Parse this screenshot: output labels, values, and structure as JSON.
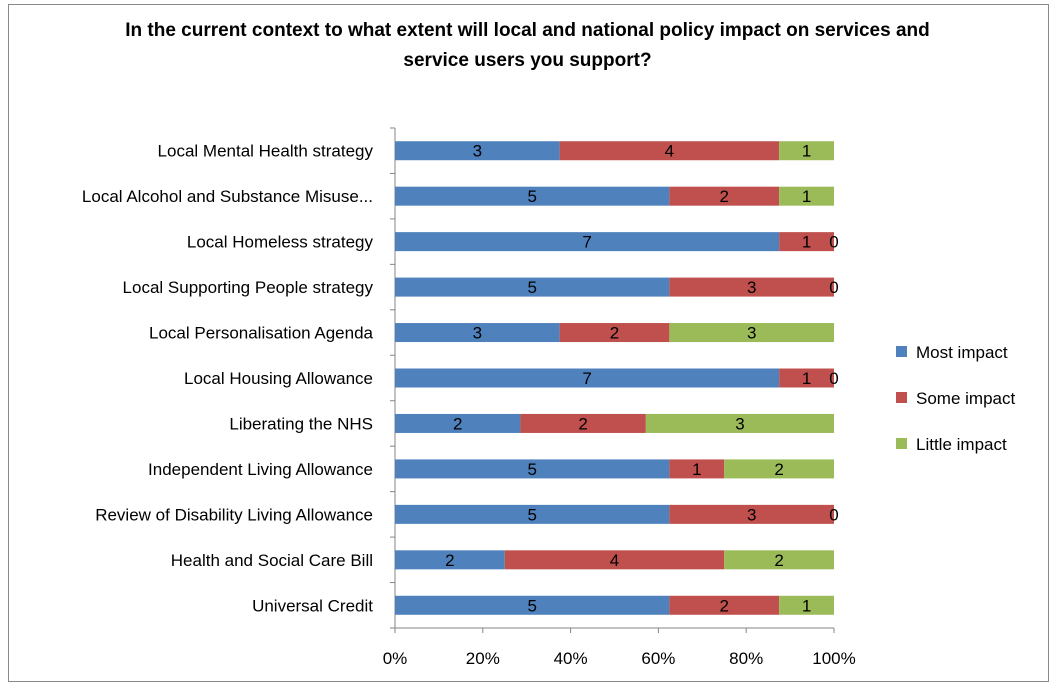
{
  "chart_data": {
    "type": "bar",
    "orientation": "horizontal",
    "stacked": "percent",
    "title": "In the current context to what extent will local and national policy impact on services and service users you support?",
    "categories": [
      "Local Mental Health strategy",
      "Local Alcohol and Substance Misuse...",
      "Local Homeless strategy",
      "Local Supporting People strategy",
      "Local Personalisation Agenda",
      "Local Housing Allowance",
      "Liberating the NHS",
      "Independent Living Allowance",
      "Review of Disability Living Allowance",
      "Health and Social Care Bill",
      "Universal Credit"
    ],
    "series": [
      {
        "name": "Most impact",
        "color": "#4f81bd",
        "values": [
          3,
          5,
          7,
          5,
          3,
          7,
          2,
          5,
          5,
          2,
          5
        ]
      },
      {
        "name": "Some impact",
        "color": "#c0504d",
        "values": [
          4,
          2,
          1,
          3,
          2,
          1,
          2,
          1,
          3,
          4,
          2
        ]
      },
      {
        "name": "Little impact",
        "color": "#9bbb59",
        "values": [
          1,
          1,
          0,
          0,
          3,
          0,
          3,
          2,
          0,
          2,
          1
        ]
      }
    ],
    "xticks": [
      "0%",
      "20%",
      "40%",
      "60%",
      "80%",
      "100%"
    ],
    "xlim": [
      0,
      100
    ],
    "grid": false,
    "legend": "right"
  }
}
